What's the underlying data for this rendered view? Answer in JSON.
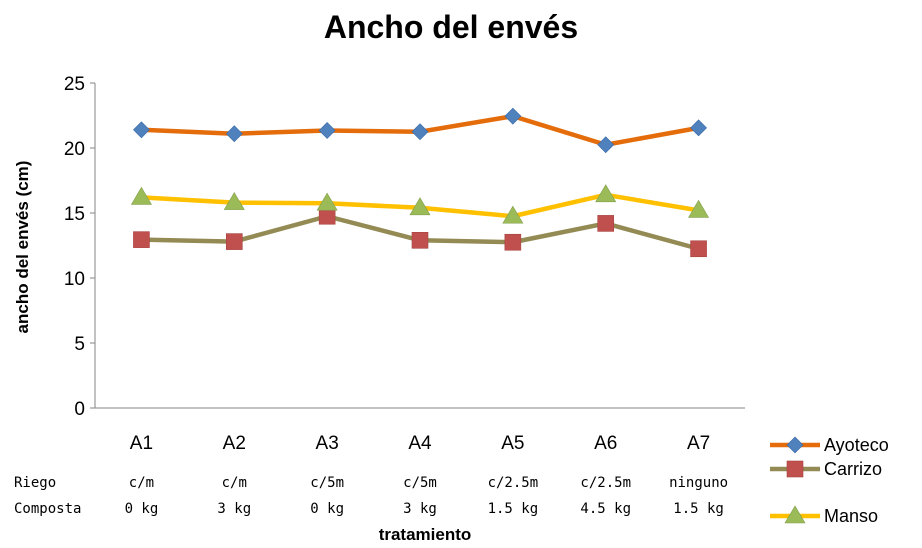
{
  "chart_data": {
    "type": "line",
    "title": "Ancho del envés",
    "xlabel": "tratamiento",
    "ylabel": "ancho del envés (cm)",
    "ylim": [
      0,
      25
    ],
    "yticks": [
      0,
      5,
      10,
      15,
      20,
      25
    ],
    "categories": [
      "A1",
      "A2",
      "A3",
      "A4",
      "A5",
      "A6",
      "A7"
    ],
    "series": [
      {
        "name": "Ayoteco",
        "color": "#E46C0A",
        "marker": "diamond",
        "marker_color": "#4F81BD",
        "values": [
          21.4,
          21.1,
          21.35,
          21.25,
          22.45,
          20.25,
          21.55
        ]
      },
      {
        "name": "Carrizo",
        "color": "#948A54",
        "marker": "square",
        "marker_color": "#C0504D",
        "values": [
          12.95,
          12.8,
          14.75,
          12.9,
          12.75,
          14.2,
          12.25
        ]
      },
      {
        "name": "Manso",
        "color": "#FFC000",
        "marker": "triangle",
        "marker_color": "#9BBB59",
        "values": [
          16.2,
          15.8,
          15.75,
          15.4,
          14.75,
          16.4,
          15.2
        ]
      }
    ],
    "grid": false,
    "legend_position": "bottom-right",
    "table": {
      "row_labels": [
        "Riego",
        "Composta"
      ],
      "riego": [
        "c/m",
        "c/m",
        "c/5m",
        "c/5m",
        "c/2.5m",
        "c/2.5m",
        "ninguno"
      ],
      "composta": [
        "0 kg",
        "3 kg",
        "0 kg",
        "3 kg",
        "1.5 kg",
        "4.5 kg",
        "1.5 kg"
      ]
    }
  }
}
